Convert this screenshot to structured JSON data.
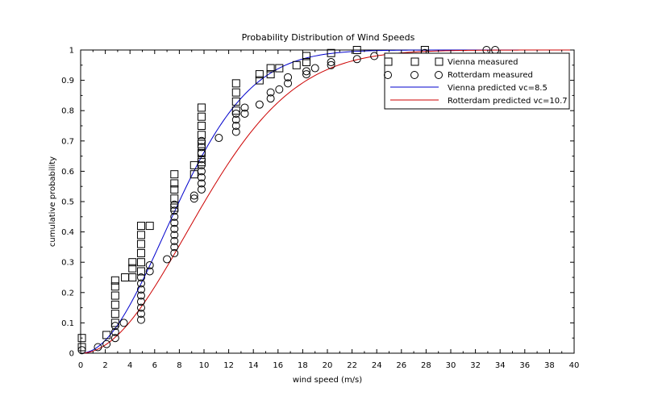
{
  "chart_data": {
    "type": "scatter",
    "title": "Probability Distribution of Wind Speeds",
    "xlabel": "wind speed (m/s)",
    "ylabel": "cumulative probability",
    "xlim": [
      0,
      40
    ],
    "ylim": [
      0,
      1
    ],
    "x_ticks": [
      "0",
      "2",
      "4",
      "6",
      "8",
      "10",
      "12",
      "14",
      "16",
      "18",
      "20",
      "22",
      "24",
      "26",
      "28",
      "30",
      "32",
      "34",
      "36",
      "38",
      "40"
    ],
    "y_ticks": [
      "0",
      "0.1",
      "0.2",
      "0.3",
      "0.4",
      "0.5",
      "0.6",
      "0.7",
      "0.8",
      "0.9",
      "1"
    ],
    "grid": false,
    "legend_position": "top-right",
    "series": [
      {
        "name": "Vienna measured",
        "kind": "markers",
        "marker": "square",
        "color": "#000000",
        "points": [
          [
            0.1,
            0.02
          ],
          [
            0.1,
            0.05
          ],
          [
            2.1,
            0.06
          ],
          [
            2.8,
            0.1
          ],
          [
            2.8,
            0.13
          ],
          [
            2.8,
            0.16
          ],
          [
            2.8,
            0.19
          ],
          [
            2.8,
            0.22
          ],
          [
            2.8,
            0.24
          ],
          [
            3.6,
            0.25
          ],
          [
            4.2,
            0.25
          ],
          [
            4.2,
            0.28
          ],
          [
            4.2,
            0.3
          ],
          [
            4.9,
            0.27
          ],
          [
            4.9,
            0.3
          ],
          [
            4.9,
            0.33
          ],
          [
            4.9,
            0.36
          ],
          [
            4.9,
            0.39
          ],
          [
            4.9,
            0.42
          ],
          [
            5.6,
            0.42
          ],
          [
            7.6,
            0.48
          ],
          [
            7.6,
            0.51
          ],
          [
            7.6,
            0.54
          ],
          [
            7.6,
            0.56
          ],
          [
            7.6,
            0.59
          ],
          [
            9.2,
            0.59
          ],
          [
            9.2,
            0.62
          ],
          [
            9.8,
            0.63
          ],
          [
            9.8,
            0.66
          ],
          [
            9.8,
            0.69
          ],
          [
            9.8,
            0.72
          ],
          [
            9.8,
            0.75
          ],
          [
            9.8,
            0.78
          ],
          [
            9.8,
            0.81
          ],
          [
            12.6,
            0.8
          ],
          [
            12.6,
            0.83
          ],
          [
            12.6,
            0.86
          ],
          [
            12.6,
            0.89
          ],
          [
            14.5,
            0.9
          ],
          [
            14.5,
            0.92
          ],
          [
            15.4,
            0.92
          ],
          [
            15.4,
            0.94
          ],
          [
            16.1,
            0.94
          ],
          [
            17.5,
            0.95
          ],
          [
            18.3,
            0.96
          ],
          [
            18.3,
            0.98
          ],
          [
            20.3,
            0.99
          ],
          [
            22.4,
            1.0
          ],
          [
            27.9,
            1.0
          ]
        ]
      },
      {
        "name": "Rotterdam measured",
        "kind": "markers",
        "marker": "circle",
        "color": "#000000",
        "points": [
          [
            0.1,
            0.01
          ],
          [
            1.4,
            0.02
          ],
          [
            2.1,
            0.03
          ],
          [
            2.8,
            0.05
          ],
          [
            2.8,
            0.07
          ],
          [
            2.8,
            0.09
          ],
          [
            3.5,
            0.1
          ],
          [
            4.9,
            0.11
          ],
          [
            4.9,
            0.13
          ],
          [
            4.9,
            0.15
          ],
          [
            4.9,
            0.17
          ],
          [
            4.9,
            0.19
          ],
          [
            4.9,
            0.21
          ],
          [
            4.9,
            0.23
          ],
          [
            4.9,
            0.25
          ],
          [
            5.6,
            0.27
          ],
          [
            5.6,
            0.29
          ],
          [
            7.0,
            0.31
          ],
          [
            7.6,
            0.33
          ],
          [
            7.6,
            0.35
          ],
          [
            7.6,
            0.37
          ],
          [
            7.6,
            0.39
          ],
          [
            7.6,
            0.41
          ],
          [
            7.6,
            0.43
          ],
          [
            7.6,
            0.45
          ],
          [
            7.6,
            0.47
          ],
          [
            7.6,
            0.49
          ],
          [
            9.2,
            0.51
          ],
          [
            9.2,
            0.52
          ],
          [
            9.8,
            0.54
          ],
          [
            9.8,
            0.56
          ],
          [
            9.8,
            0.58
          ],
          [
            9.8,
            0.6
          ],
          [
            9.8,
            0.62
          ],
          [
            9.8,
            0.64
          ],
          [
            9.8,
            0.66
          ],
          [
            9.8,
            0.68
          ],
          [
            9.8,
            0.7
          ],
          [
            11.2,
            0.71
          ],
          [
            12.6,
            0.73
          ],
          [
            12.6,
            0.75
          ],
          [
            12.6,
            0.77
          ],
          [
            12.6,
            0.79
          ],
          [
            13.3,
            0.79
          ],
          [
            13.3,
            0.81
          ],
          [
            14.5,
            0.82
          ],
          [
            15.4,
            0.84
          ],
          [
            15.4,
            0.86
          ],
          [
            16.1,
            0.87
          ],
          [
            16.8,
            0.89
          ],
          [
            16.8,
            0.91
          ],
          [
            18.3,
            0.92
          ],
          [
            18.3,
            0.93
          ],
          [
            19.0,
            0.94
          ],
          [
            20.3,
            0.95
          ],
          [
            20.3,
            0.96
          ],
          [
            22.4,
            0.97
          ],
          [
            23.8,
            0.98
          ],
          [
            27.9,
            0.99
          ],
          [
            32.9,
            1.0
          ],
          [
            33.6,
            1.0
          ]
        ]
      },
      {
        "name": "Vienna predicted vc=8.5",
        "kind": "line",
        "color": "#0000cc",
        "function": "1 - exp(-(pi/4)*(v/vc)^2)",
        "vc": 8.5
      },
      {
        "name": "Rotterdam predicted vc=10.7",
        "kind": "line",
        "color": "#cc0000",
        "function": "1 - exp(-(pi/4)*(v/vc)^2)",
        "vc": 10.7
      }
    ]
  }
}
